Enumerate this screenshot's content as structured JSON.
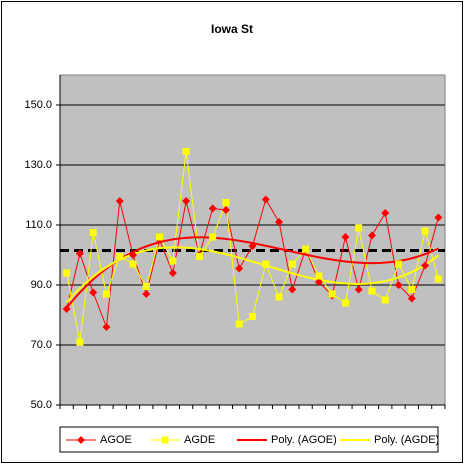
{
  "chart_data": {
    "type": "line",
    "title": "Iowa St",
    "categories": [
      null,
      null,
      null,
      null,
      null,
      null,
      null,
      null,
      null,
      null,
      null,
      null,
      null,
      null,
      null,
      null,
      null,
      null,
      null,
      null,
      null,
      null,
      null,
      null,
      null,
      null,
      null,
      null,
      null
    ],
    "series": [
      {
        "name": "AGOE",
        "color": "#ff0000",
        "marker": "diamond",
        "values": [
          82,
          100.5,
          87.5,
          76,
          118,
          100,
          87,
          105,
          94,
          118,
          100,
          115.5,
          115,
          95.5,
          103,
          118.5,
          111,
          88.5,
          102,
          91,
          86.5,
          106,
          88.5,
          106.5,
          114,
          90,
          85.5,
          96.5,
          112.5
        ]
      },
      {
        "name": "AGDE",
        "color": "#ffff00",
        "marker": "square",
        "values": [
          94,
          71,
          107.5,
          87,
          99.5,
          97,
          89.5,
          106,
          98,
          134.5,
          99.5,
          106,
          117.5,
          77,
          79.5,
          97,
          86,
          97,
          102,
          93,
          87,
          84,
          109,
          88,
          85,
          97,
          88.5,
          108,
          92
        ]
      }
    ],
    "trendlines": [
      {
        "name": "Poly. (AGOE)",
        "color": "#ff0000",
        "series": 0,
        "order": 3
      },
      {
        "name": "Poly. (AGDE)",
        "color": "#ffff00",
        "series": 1,
        "order": 3
      }
    ],
    "reference_line": {
      "value": 101.5,
      "color": "#000000"
    },
    "ylim": [
      50,
      160
    ],
    "yticks": [
      {
        "value": 50,
        "label": "50.0"
      },
      {
        "value": 70,
        "label": "70.0"
      },
      {
        "value": 90,
        "label": "90.0"
      },
      {
        "value": 110,
        "label": "110.0"
      },
      {
        "value": 130,
        "label": "130.0"
      },
      {
        "value": 150,
        "label": "150.0"
      }
    ],
    "grid": true,
    "legend": "bottom"
  }
}
